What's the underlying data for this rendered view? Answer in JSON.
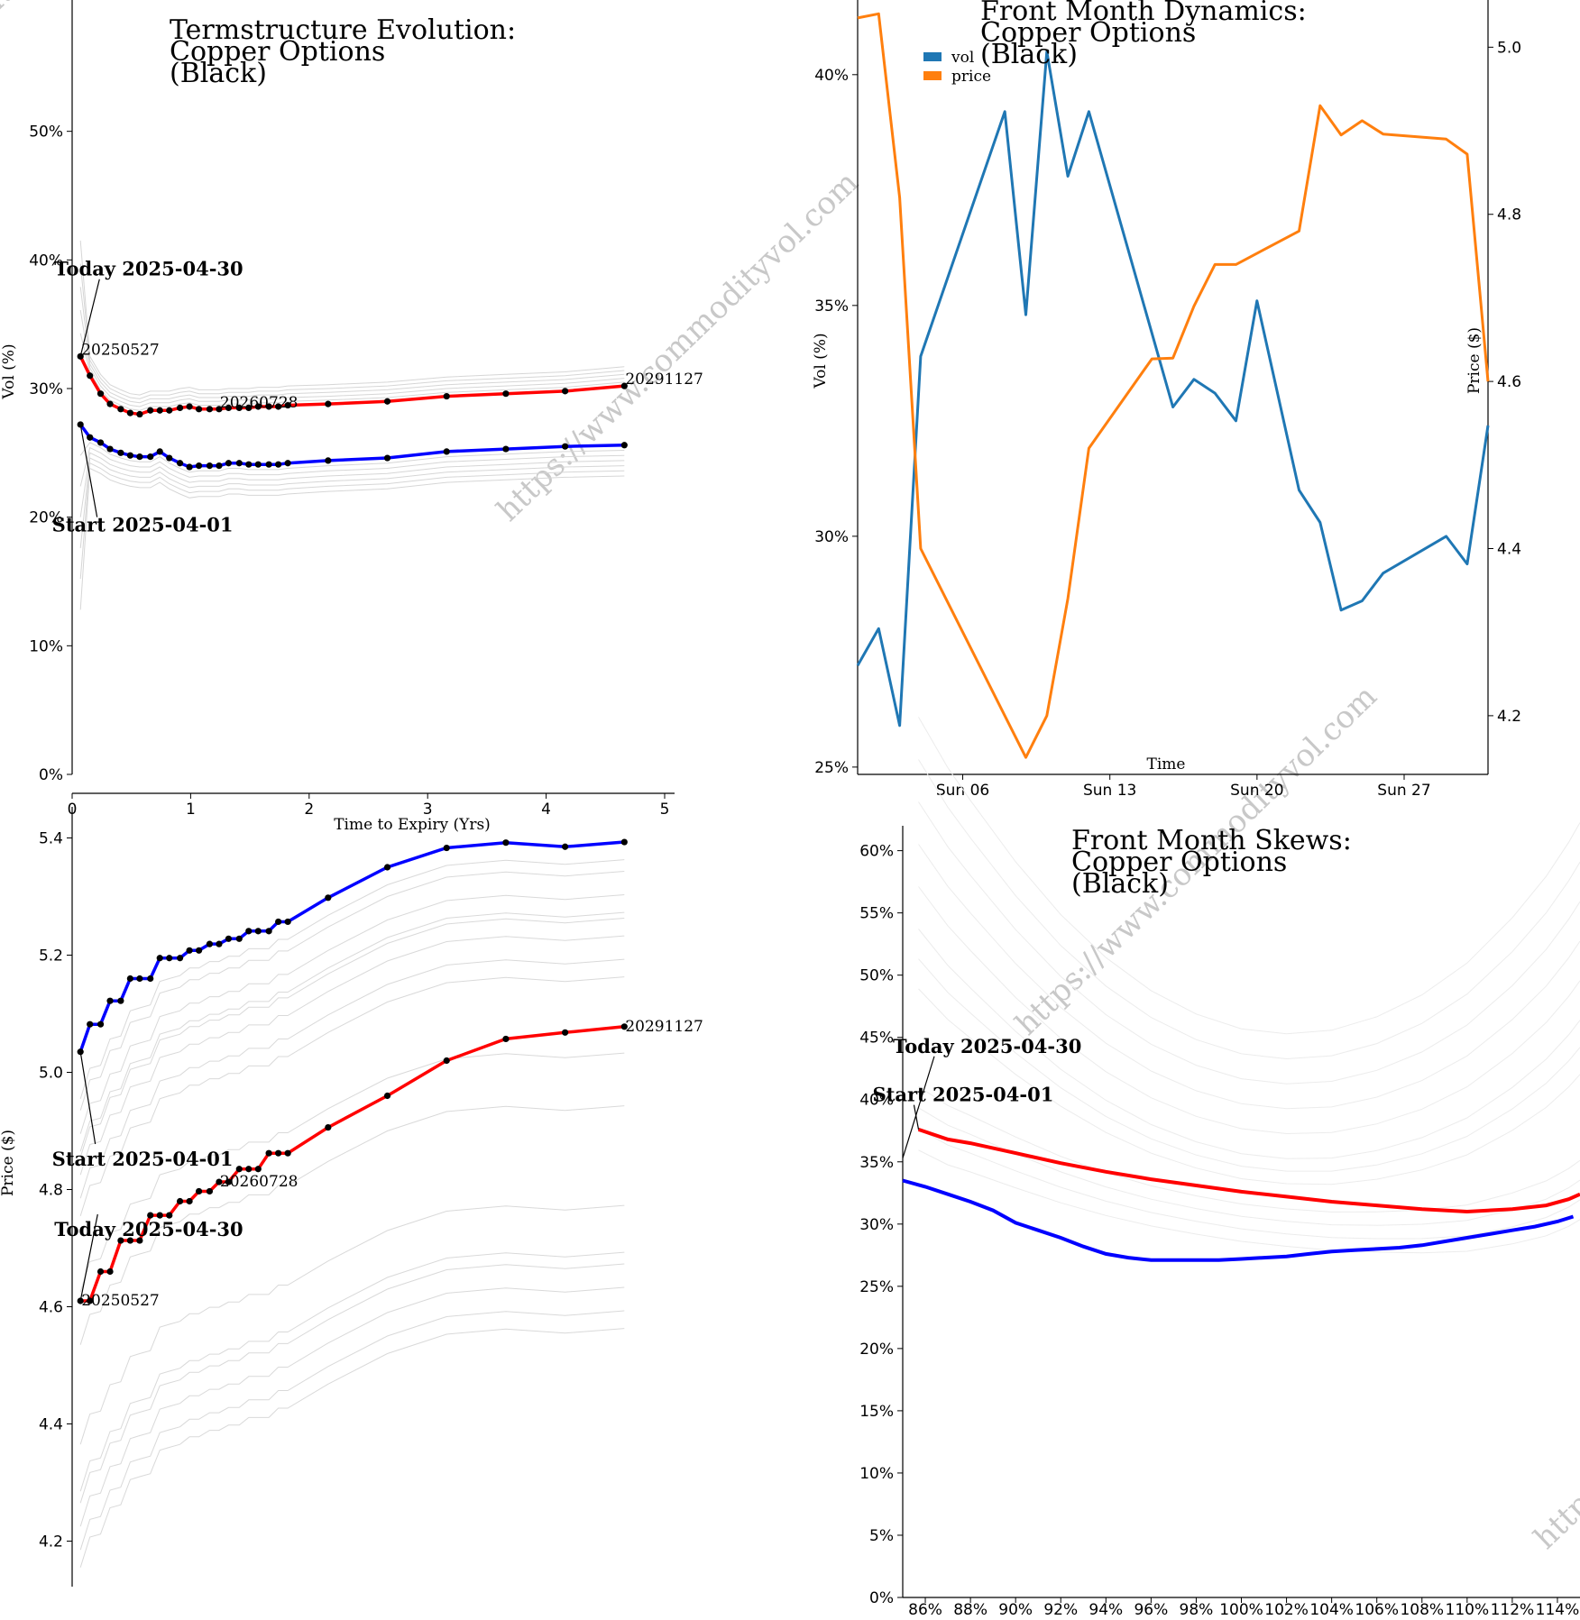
{
  "watermark": "https://www.commodityvol.com",
  "chart_data": [
    {
      "id": "termstructure",
      "type": "line",
      "title_lines": [
        "Termstructure Evolution:",
        "Copper Options",
        "(Black)"
      ],
      "xlabel": "Time to Expiry (Yrs)",
      "ylabel": "Vol (%)",
      "xlim": [
        0,
        5
      ],
      "ylim": [
        0,
        60
      ],
      "x_ticks": [
        0,
        1,
        2,
        3,
        4,
        5
      ],
      "y_ticks": [
        0,
        10,
        20,
        30,
        40,
        50
      ],
      "y_tick_labels": [
        "0%",
        "10%",
        "20%",
        "30%",
        "40%",
        "50%"
      ],
      "series": [
        {
          "color": "#ff0000",
          "x": [
            0.07,
            0.15,
            0.24,
            0.32,
            0.41,
            0.49,
            0.57,
            0.66,
            0.74,
            0.82,
            0.91,
            0.99,
            1.07,
            1.16,
            1.24,
            1.32,
            1.41,
            1.49,
            1.57,
            1.66,
            1.74,
            1.82,
            2.16,
            2.66,
            3.16,
            3.66,
            4.16,
            4.66
          ],
          "y": [
            32.5,
            31.0,
            29.6,
            28.8,
            28.4,
            28.1,
            28.0,
            28.3,
            28.3,
            28.3,
            28.5,
            28.6,
            28.4,
            28.4,
            28.4,
            28.5,
            28.5,
            28.5,
            28.6,
            28.6,
            28.6,
            28.7,
            28.8,
            29.0,
            29.4,
            29.6,
            29.8,
            30.2
          ]
        },
        {
          "color": "#0000ff",
          "x": [
            0.07,
            0.15,
            0.24,
            0.32,
            0.41,
            0.49,
            0.57,
            0.66,
            0.74,
            0.82,
            0.91,
            0.99,
            1.07,
            1.16,
            1.24,
            1.32,
            1.41,
            1.49,
            1.57,
            1.66,
            1.74,
            1.82,
            2.16,
            2.66,
            3.16,
            3.66,
            4.16,
            4.66
          ],
          "y": [
            27.2,
            26.2,
            25.8,
            25.3,
            25.0,
            24.8,
            24.7,
            24.7,
            25.1,
            24.6,
            24.2,
            23.9,
            24.0,
            24.0,
            24.0,
            24.2,
            24.2,
            24.1,
            24.1,
            24.1,
            24.1,
            24.2,
            24.4,
            24.6,
            25.1,
            25.3,
            25.5,
            25.6
          ]
        }
      ],
      "labels": [
        {
          "text": "20250527",
          "x": 0.07,
          "y": 32.5
        },
        {
          "text": "20260728",
          "x": 1.24,
          "y": 28.4
        },
        {
          "text": "20291127",
          "x": 4.66,
          "y": 30.2
        }
      ],
      "annotations": [
        {
          "text": "Today 2025-04-30",
          "x": -0.15,
          "y": 39.2,
          "tx": 0.07,
          "ty": 32.5
        },
        {
          "text": "Start 2025-04-01",
          "x": -0.17,
          "y": 19.3,
          "tx": 0.07,
          "ty": 27.2
        }
      ]
    },
    {
      "id": "front-month-dynamics",
      "type": "line",
      "title_lines": [
        "Front Month Dynamics:",
        "Copper Options",
        "(Black)"
      ],
      "xlabel": "Time",
      "ylabel": "Vol (%)",
      "ylabel_right": "Price ($)",
      "x_day_range": [
        1,
        30
      ],
      "x_ticks": [
        6,
        13,
        20,
        27
      ],
      "x_tick_labels": [
        "Sun 06",
        "Sun 13",
        "Sun 20",
        "Sun 27"
      ],
      "ylim": [
        24.9,
        41.5
      ],
      "y_ticks": [
        25,
        30,
        35,
        40
      ],
      "y_tick_labels": [
        "25%",
        "30%",
        "35%",
        "40%"
      ],
      "ylim_right": [
        4.133,
        5.05
      ],
      "y_ticks_right": [
        4.2,
        4.4,
        4.6,
        4.8,
        5.0
      ],
      "y_tick_labels_right": [
        "4.2",
        "4.4",
        "4.6",
        "4.8",
        "5.0"
      ],
      "legend_position": "top-left",
      "series": [
        {
          "name": "vol",
          "color": "#1f77b4",
          "axis": "left",
          "x": [
            1,
            2,
            3,
            4,
            8,
            9,
            10,
            11,
            12,
            16,
            17,
            18,
            19,
            20,
            22,
            23,
            24,
            25,
            26,
            29,
            30,
            30.99
          ],
          "y": [
            27.2,
            28.0,
            25.9,
            33.9,
            39.2,
            34.8,
            40.5,
            37.8,
            39.2,
            32.8,
            33.4,
            33.1,
            32.5,
            35.1,
            31.0,
            30.3,
            28.4,
            28.6,
            29.2,
            30.0,
            29.4,
            32.4
          ]
        },
        {
          "name": "price",
          "color": "#ff7f0e",
          "axis": "right",
          "x": [
            1,
            2,
            3,
            4,
            8,
            9,
            10,
            11,
            12,
            15,
            16,
            17,
            18,
            19,
            22,
            23,
            24,
            25,
            26,
            29,
            30,
            30.99
          ],
          "y": [
            5.035,
            5.04,
            4.82,
            4.4,
            4.2,
            4.15,
            4.2,
            4.34,
            4.52,
            4.627,
            4.628,
            4.69,
            4.74,
            4.74,
            4.78,
            4.93,
            4.895,
            4.912,
            4.896,
            4.89,
            4.872,
            4.6
          ]
        }
      ]
    },
    {
      "id": "price-termstructure",
      "type": "line",
      "xlabel": "",
      "ylabel": "Price ($)",
      "xlim": [
        0,
        5
      ],
      "ylim": [
        4.13,
        5.43
      ],
      "y_ticks": [
        4.2,
        4.4,
        4.6,
        4.8,
        5.0,
        5.2,
        5.4
      ],
      "y_tick_labels": [
        "4.2",
        "4.4",
        "4.6",
        "4.8",
        "5.0",
        "5.2",
        "5.4"
      ],
      "series": [
        {
          "color": "#0000ff",
          "x": [
            0.07,
            0.15,
            0.24,
            0.32,
            0.41,
            0.49,
            0.57,
            0.66,
            0.74,
            0.82,
            0.91,
            0.99,
            1.07,
            1.16,
            1.24,
            1.32,
            1.41,
            1.49,
            1.57,
            1.66,
            1.74,
            1.82,
            2.16,
            2.66,
            3.16,
            3.66,
            4.16,
            4.66
          ],
          "y": [
            5.035,
            5.082,
            5.082,
            5.122,
            5.122,
            5.16,
            5.16,
            5.16,
            5.195,
            5.195,
            5.195,
            5.208,
            5.208,
            5.219,
            5.219,
            5.228,
            5.228,
            5.241,
            5.241,
            5.241,
            5.257,
            5.257,
            5.298,
            5.35,
            5.383,
            5.392,
            5.385,
            5.393
          ]
        },
        {
          "color": "#ff0000",
          "x": [
            0.07,
            0.15,
            0.24,
            0.32,
            0.41,
            0.49,
            0.57,
            0.66,
            0.74,
            0.82,
            0.91,
            0.99,
            1.07,
            1.16,
            1.24,
            1.32,
            1.41,
            1.49,
            1.57,
            1.66,
            1.74,
            1.82,
            2.16,
            2.66,
            3.16,
            3.66,
            4.16,
            4.66
          ],
          "y": [
            4.61,
            4.61,
            4.66,
            4.66,
            4.713,
            4.713,
            4.713,
            4.756,
            4.756,
            4.756,
            4.78,
            4.78,
            4.797,
            4.797,
            4.813,
            4.813,
            4.835,
            4.835,
            4.835,
            4.862,
            4.862,
            4.862,
            4.906,
            4.96,
            5.02,
            5.057,
            5.068,
            5.078
          ]
        }
      ],
      "labels": [
        {
          "text": "20250527",
          "x": 0.07,
          "y": 4.61
        },
        {
          "text": "20260728",
          "x": 1.24,
          "y": 4.813
        },
        {
          "text": "20291127",
          "x": 4.66,
          "y": 5.078
        }
      ],
      "annotations": [
        {
          "text": "Start 2025-04-01",
          "x": -0.17,
          "y": 4.85,
          "tx": 0.07,
          "ty": 5.035
        },
        {
          "text": "Today 2025-04-30",
          "x": -0.15,
          "y": 4.73,
          "tx": 0.07,
          "ty": 4.61
        }
      ]
    },
    {
      "id": "front-month-skews",
      "type": "line",
      "title_lines": [
        "Front Month Skews:",
        "Copper Options",
        "(Black)"
      ],
      "xlabel": "",
      "ylabel": "",
      "xlim": [
        85,
        115
      ],
      "ylim": [
        0,
        62
      ],
      "x_ticks": [
        86,
        88,
        90,
        92,
        94,
        96,
        98,
        100,
        102,
        104,
        106,
        108,
        110,
        112,
        114
      ],
      "x_tick_labels": [
        "86%",
        "88%",
        "90%",
        "92%",
        "94%",
        "96%",
        "98%",
        "100%",
        "102%",
        "104%",
        "106%",
        "108%",
        "110%",
        "112%",
        "114%"
      ],
      "y_ticks": [
        0,
        5,
        10,
        15,
        20,
        25,
        30,
        35,
        40,
        45,
        50,
        55,
        60
      ],
      "y_tick_labels": [
        "0%",
        "5%",
        "10%",
        "15%",
        "20%",
        "25%",
        "30%",
        "35%",
        "40%",
        "45%",
        "50%",
        "55%",
        "60%"
      ],
      "series": [
        {
          "color": "#ff0000",
          "x": [
            85.7,
            87,
            88,
            90,
            92,
            94,
            96,
            98,
            100,
            102,
            104,
            106,
            108,
            110,
            112,
            113.5,
            114.5,
            115
          ],
          "y": [
            37.6,
            36.8,
            36.5,
            35.7,
            34.9,
            34.2,
            33.6,
            33.1,
            32.6,
            32.2,
            31.8,
            31.5,
            31.2,
            31.0,
            31.2,
            31.5,
            32.0,
            32.4
          ]
        },
        {
          "color": "#0000ff",
          "x": [
            85,
            86,
            87,
            88,
            89,
            90,
            91,
            92,
            93,
            94,
            95,
            96,
            97,
            98,
            99,
            100,
            101,
            102,
            103,
            104,
            105,
            106,
            107,
            108,
            109,
            110,
            111,
            112,
            113,
            114,
            114.7
          ],
          "y": [
            33.5,
            33.0,
            32.4,
            31.8,
            31.1,
            30.1,
            29.5,
            28.9,
            28.2,
            27.6,
            27.3,
            27.1,
            27.1,
            27.1,
            27.1,
            27.2,
            27.3,
            27.4,
            27.6,
            27.8,
            27.9,
            28.0,
            28.1,
            28.3,
            28.6,
            28.9,
            29.2,
            29.5,
            29.8,
            30.2,
            30.6
          ]
        }
      ],
      "annotations": [
        {
          "text": "Today 2025-04-30",
          "x": 85.0,
          "y": 44.2,
          "tx": 85.0,
          "ty": 35.3
        },
        {
          "text": "Start 2025-04-01",
          "x": 84.1,
          "y": 40.3,
          "tx": 85.7,
          "ty": 37.6
        }
      ]
    }
  ]
}
